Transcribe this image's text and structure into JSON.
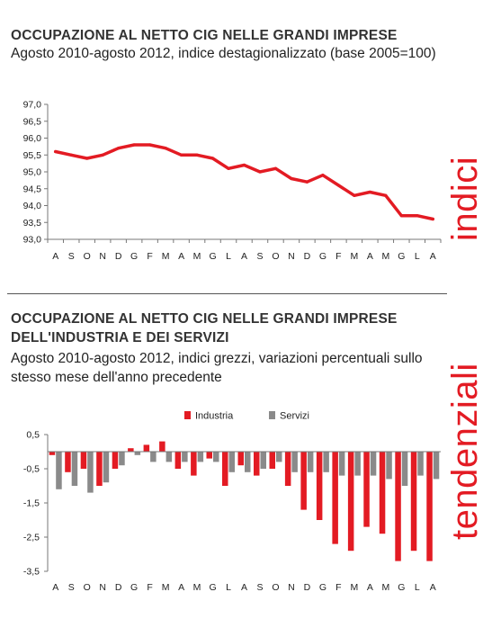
{
  "colors": {
    "accent": "#e31b23",
    "industria": "#e31b23",
    "servizi": "#8a8a8a"
  },
  "chart1": {
    "title": "OCCUPAZIONE AL NETTO CIG NELLE GRANDI IMPRESE",
    "subtitle": "Agosto 2010-agosto 2012, indice destagionalizzato (base 2005=100)",
    "side_label": "indici"
  },
  "chart2": {
    "title_line1": "OCCUPAZIONE AL NETTO CIG NELLE GRANDI IMPRESE",
    "title_line2": "DELL'INDUSTRIA E DEI SERVIZI",
    "subtitle_line1": "Agosto 2010-agosto 2012, indici grezzi, variazioni percentuali sullo",
    "subtitle_line2": "stesso mese dell'anno precedente",
    "side_label": "tendenziali"
  },
  "chart_data": [
    {
      "type": "line",
      "categories": [
        "A",
        "S",
        "O",
        "N",
        "D",
        "G",
        "F",
        "M",
        "A",
        "M",
        "G",
        "L",
        "A",
        "S",
        "O",
        "N",
        "D",
        "G",
        "F",
        "M",
        "A",
        "M",
        "G",
        "L",
        "A"
      ],
      "series": [
        {
          "values": [
            95.6,
            95.5,
            95.4,
            95.5,
            95.7,
            95.8,
            95.8,
            95.7,
            95.5,
            95.5,
            95.4,
            95.1,
            95.2,
            95.0,
            95.1,
            94.8,
            94.7,
            94.9,
            94.6,
            94.3,
            94.4,
            94.3,
            93.7,
            93.7,
            93.6
          ]
        }
      ],
      "yticks": [
        "97,0",
        "96,5",
        "96,0",
        "95,5",
        "95,0",
        "94,5",
        "94,0",
        "93,5",
        "93,0"
      ],
      "ylim": [
        93.0,
        97.0
      ],
      "grid": false
    },
    {
      "type": "bar",
      "categories": [
        "A",
        "S",
        "O",
        "N",
        "D",
        "G",
        "F",
        "M",
        "A",
        "M",
        "G",
        "L",
        "A",
        "S",
        "O",
        "N",
        "D",
        "G",
        "F",
        "M",
        "A",
        "M",
        "G",
        "L",
        "A"
      ],
      "series": [
        {
          "name": "Industria",
          "values": [
            -0.1,
            -0.6,
            -0.5,
            -1.0,
            -0.5,
            0.1,
            0.2,
            0.3,
            -0.5,
            -0.7,
            -0.2,
            -1.0,
            -0.4,
            -0.7,
            -0.5,
            -1.0,
            -1.7,
            -2.0,
            -2.7,
            -2.9,
            -2.2,
            -2.4,
            -3.2,
            -2.9,
            -3.2
          ]
        },
        {
          "name": "Servizi",
          "values": [
            -1.1,
            -1.0,
            -1.2,
            -0.9,
            -0.4,
            -0.1,
            -0.3,
            -0.3,
            -0.3,
            -0.3,
            -0.3,
            -0.6,
            -0.6,
            -0.5,
            -0.3,
            -0.6,
            -0.6,
            -0.6,
            -0.7,
            -0.7,
            -0.7,
            -0.8,
            -1.0,
            -0.7,
            -0.8
          ]
        }
      ],
      "yticks": [
        "0,5",
        "-0,5",
        "-1,5",
        "-2,5",
        "-3,5"
      ],
      "ylim": [
        -3.5,
        0.5
      ],
      "legend": "top-center",
      "grid": false
    }
  ]
}
